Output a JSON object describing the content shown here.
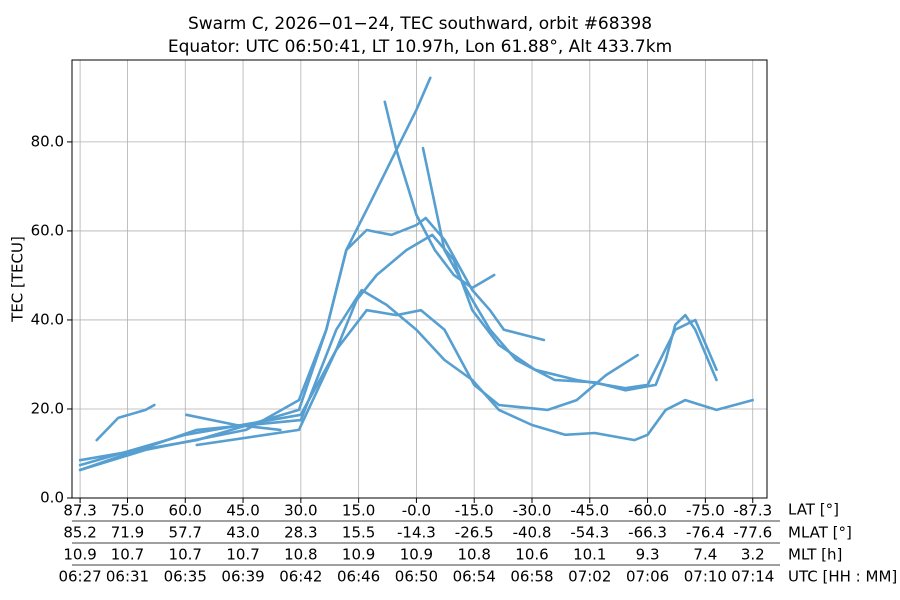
{
  "chart_data": {
    "type": "line",
    "title": "Swarm C, 2026−01−24, TEC southward, orbit #68398",
    "subtitle": "Equator: UTC 06:50:41, LT 10.97h, Lon 61.88°, Alt 433.7km",
    "ylabel": "TEC [TECU]",
    "xlabel": "LAT [°]",
    "color": "#569fd0",
    "grid": true,
    "xlim": [
      89.4,
      -91
    ],
    "ylim": [
      0,
      98.4
    ],
    "yticks": [
      {
        "value": 0,
        "label": "0.0"
      },
      {
        "value": 20,
        "label": "20.0"
      },
      {
        "value": 40,
        "label": "40.0"
      },
      {
        "value": 60,
        "label": "60.0"
      },
      {
        "value": 80,
        "label": "80.0"
      }
    ],
    "xticks": [
      {
        "value": 87.3,
        "label": "87.3"
      },
      {
        "value": 75,
        "label": "75.0"
      },
      {
        "value": 60,
        "label": "60.0"
      },
      {
        "value": 45,
        "label": "45.0"
      },
      {
        "value": 30,
        "label": "30.0"
      },
      {
        "value": 15,
        "label": "15.0"
      },
      {
        "value": 0,
        "label": "-0.0"
      },
      {
        "value": -15,
        "label": "-15.0"
      },
      {
        "value": -30,
        "label": "-30.0"
      },
      {
        "value": -45,
        "label": "-45.0"
      },
      {
        "value": -60,
        "label": "-60.0"
      },
      {
        "value": -75,
        "label": "-75.0"
      },
      {
        "value": -87.3,
        "label": "-87.3"
      }
    ],
    "tick_rows": [
      {
        "name": "MLAT [°]",
        "labels": [
          "85.2",
          "71.9",
          "57.7",
          "43.0",
          "28.3",
          "15.5",
          "-14.3",
          "-26.5",
          "-40.8",
          "-54.3",
          "-66.3",
          "-76.4",
          "-77.6"
        ]
      },
      {
        "name": "MLT [h]",
        "labels": [
          "10.9",
          "10.7",
          "10.7",
          "10.7",
          "10.8",
          "10.9",
          "10.9",
          "10.8",
          "10.6",
          "10.1",
          "9.3",
          "7.4",
          "3.2"
        ]
      },
      {
        "name": "UTC [HH : MM]",
        "labels": [
          "06:27",
          "06:31",
          "06:35",
          "06:39",
          "06:42",
          "06:46",
          "06:50",
          "06:54",
          "06:58",
          "07:02",
          "07:06",
          "07:10",
          "07:14"
        ]
      }
    ],
    "series": [
      {
        "x": [
          87.3,
          70.3,
          44.2,
          30.5,
          23.4,
          18.2,
          11.6,
          5.2,
          0,
          -3.6
        ],
        "values": [
          6.3,
          10.8,
          15.3,
          22,
          37.8,
          55.7,
          67,
          78.2,
          87.2,
          94.4
        ]
      },
      {
        "x": [
          8.2,
          5.2,
          0,
          -4.8,
          -9.7,
          -14.5,
          -20.2
        ],
        "values": [
          89,
          78.2,
          63.6,
          55.7,
          50.1,
          47.2,
          50.1
        ]
      },
      {
        "x": [
          -1.7,
          -7.3,
          -14.5,
          -19.1,
          -25.9,
          -35.9,
          -46.3,
          -54.2,
          -62.1,
          -64.7,
          -67.2,
          -69.8,
          -72.4,
          -77.9
        ],
        "values": [
          78.6,
          55.7,
          44.5,
          37.8,
          31,
          26.5,
          26,
          24.2,
          25.4,
          31,
          38.9,
          41.1,
          37.8,
          26.5
        ]
      },
      {
        "x": [
          87.3,
          57,
          30.5,
          23.4,
          18.2,
          12.9,
          6.5,
          0,
          -2.4,
          -7.3,
          -14.5,
          -19.1,
          -22.7,
          -33.1
        ],
        "values": [
          8.5,
          13,
          19.8,
          37.8,
          55.7,
          60.2,
          59.1,
          61.3,
          62.9,
          58,
          46.7,
          42.2,
          37.8,
          35.5
        ]
      },
      {
        "x": [
          87.3,
          60,
          30,
          20.8,
          15.5,
          10.3,
          2.6,
          -4.1,
          -9.7,
          -14.5,
          -21.4,
          -30.8,
          -41.6,
          -54.2,
          -60,
          -67.2,
          -72.4,
          -77.9
        ],
        "values": [
          7.4,
          14.2,
          18.7,
          33.3,
          44.5,
          50.1,
          55.7,
          59.1,
          53.5,
          42.2,
          34.4,
          28.8,
          26.5,
          24.7,
          25.4,
          37.8,
          40,
          28.8
        ]
      },
      {
        "x": [
          87.3,
          57,
          30,
          20.8,
          14.2,
          7.8,
          0,
          -7.3,
          -14.5,
          -21.4,
          -30,
          -38.6,
          -46.3,
          -56.6,
          -60,
          -64.7,
          -69.8,
          -77.9,
          -87.3
        ],
        "values": [
          6.3,
          15.3,
          17.5,
          37.8,
          46.7,
          43.4,
          37.8,
          31,
          26.5,
          19.8,
          16.4,
          14.2,
          14.6,
          13,
          14.2,
          19.8,
          22,
          19.8,
          22
        ]
      },
      {
        "x": [
          57,
          30.5,
          20.8,
          12.9,
          5.2,
          -1.2,
          -7.3,
          -15,
          -21.4,
          -34.1,
          -41.6,
          -49.2,
          -57.4
        ],
        "values": [
          11.9,
          15.3,
          33.3,
          42.2,
          41.1,
          42.2,
          37.8,
          25.4,
          20.9,
          19.8,
          22,
          27.6,
          32.1
        ]
      },
      {
        "x": [
          83,
          77.4,
          70.3,
          68
        ],
        "values": [
          13,
          18,
          19.8,
          20.9
        ]
      },
      {
        "x": [
          59.7,
          46.8,
          35.3
        ],
        "values": [
          18.7,
          16.4,
          15.3
        ]
      }
    ]
  }
}
